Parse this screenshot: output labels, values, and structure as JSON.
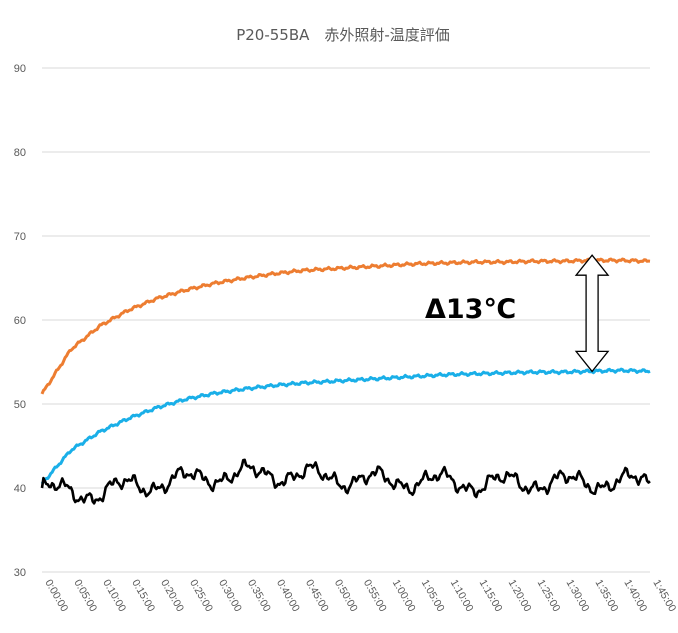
{
  "colors": {
    "orange": "#ED7D31",
    "blue": "#1AAFE8",
    "black": "#000000",
    "grid": "#D9D9D9",
    "text": "#595959"
  },
  "chart_data": {
    "type": "line",
    "title": "P20-55BA　赤外照射-温度評価",
    "xlabel": "",
    "ylabel": "",
    "ylim": [
      30,
      90
    ],
    "yticks": [
      "90",
      "80",
      "70",
      "60",
      "50",
      "40",
      "30"
    ],
    "grid": true,
    "legend": "none",
    "x": [
      "0:00:00",
      "0:05:00",
      "0:10:00",
      "0:15:00",
      "0:20:00",
      "0:25:00",
      "0:30:00",
      "0:35:00",
      "0:40:00",
      "0:45:00",
      "0:50:00",
      "0:55:00",
      "1:00:00",
      "1:05:00",
      "1:10:00",
      "1:15:00",
      "1:20:00",
      "1:25:00",
      "1:30:00",
      "1:35:00",
      "1:40:00",
      "1:45:00"
    ],
    "series": [
      {
        "color": "#ED7D31",
        "values": [
          51.2,
          56.5,
          59.3,
          61.2,
          62.6,
          63.6,
          64.4,
          65.0,
          65.5,
          65.9,
          66.1,
          66.3,
          66.5,
          66.7,
          66.8,
          66.9,
          66.9,
          67.0,
          67.0,
          67.1,
          67.1,
          67.0
        ]
      },
      {
        "color": "#1AAFE8",
        "values": [
          40.5,
          44.5,
          46.7,
          48.3,
          49.6,
          50.6,
          51.3,
          51.8,
          52.2,
          52.5,
          52.7,
          52.9,
          53.1,
          53.3,
          53.5,
          53.6,
          53.7,
          53.8,
          53.8,
          53.9,
          54.0,
          53.9
        ]
      },
      {
        "color": "#000000",
        "values": [
          40.0,
          39.3,
          39.5,
          40.2,
          40.6,
          41.0,
          41.5,
          41.6,
          41.7,
          41.5,
          41.3,
          41.0,
          40.8,
          40.9,
          40.7,
          40.5,
          40.6,
          40.7,
          40.6,
          40.8,
          40.6,
          40.8
        ]
      }
    ],
    "annotation": {
      "text": "Δ13℃",
      "from": 67.0,
      "to": 54.0,
      "at_x": "1:35:00"
    }
  }
}
